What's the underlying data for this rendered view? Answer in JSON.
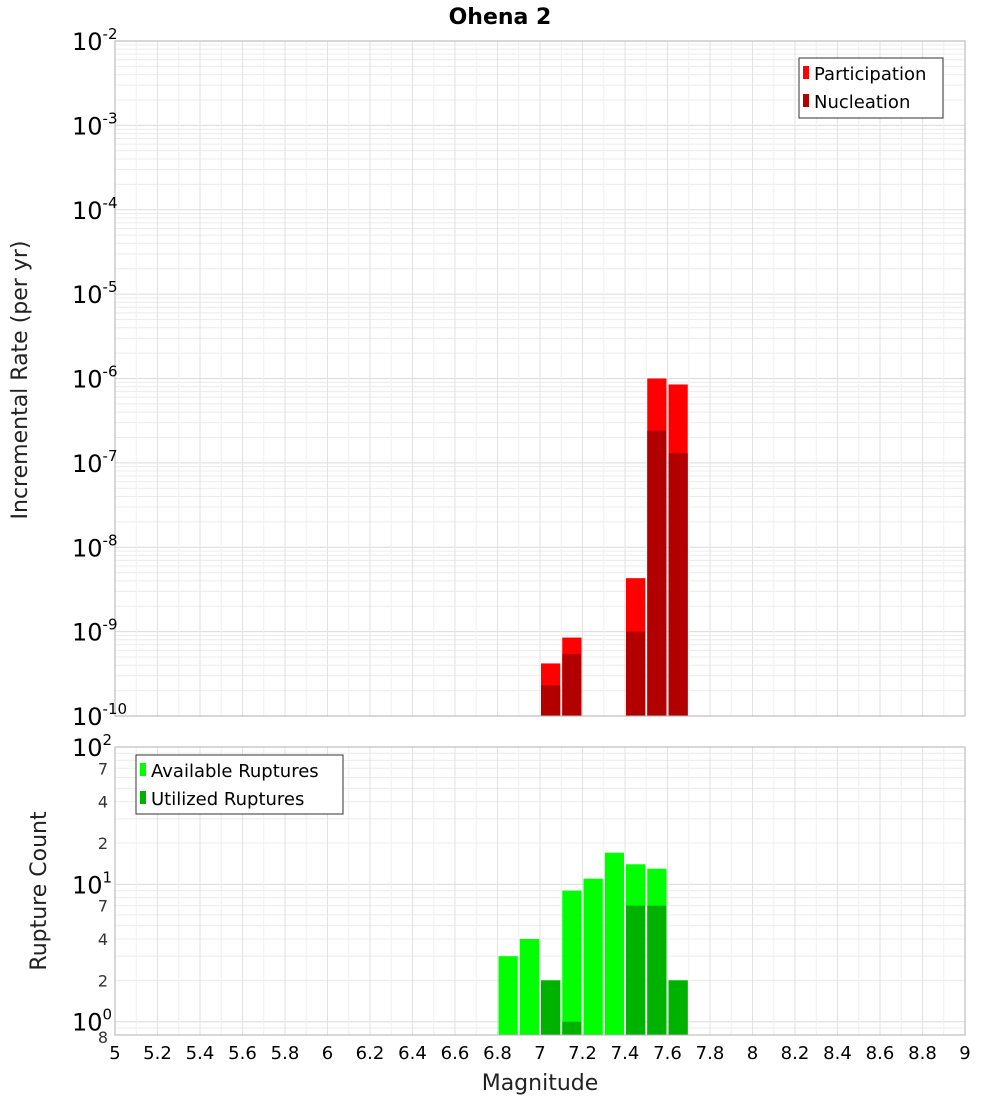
{
  "chart_data": [
    {
      "type": "bar",
      "title": "Ohena 2",
      "ylabel": "Incremental Rate (per yr)",
      "yscale": "log",
      "ylim": [
        1e-10,
        0.01
      ],
      "xlim": [
        5,
        9
      ],
      "bin_width": 0.1,
      "y_ticks": [
        {
          "base": "10",
          "exp": "-2"
        },
        {
          "base": "10",
          "exp": "-3"
        },
        {
          "base": "10",
          "exp": "-4"
        },
        {
          "base": "10",
          "exp": "-5"
        },
        {
          "base": "10",
          "exp": "-6"
        },
        {
          "base": "10",
          "exp": "-7"
        },
        {
          "base": "10",
          "exp": "-8"
        },
        {
          "base": "10",
          "exp": "-9"
        },
        {
          "base": "10",
          "exp": "-10"
        }
      ],
      "legend": {
        "position": "top-right",
        "entries": [
          {
            "label": "Participation",
            "color": "#ff0000"
          },
          {
            "label": "Nucleation",
            "color": "#b20000"
          }
        ]
      },
      "series": [
        {
          "name": "Participation",
          "color": "#ff0000",
          "x": [
            7.05,
            7.15,
            7.45,
            7.55,
            7.65
          ],
          "values": [
            4.2e-10,
            8.5e-10,
            4.3e-09,
            1e-06,
            8.5e-07
          ]
        },
        {
          "name": "Nucleation",
          "color": "#b20000",
          "x": [
            7.05,
            7.15,
            7.45,
            7.55,
            7.65
          ],
          "values": [
            2.3e-10,
            5.4e-10,
            1e-09,
            2.4e-07,
            1.3e-07
          ]
        }
      ],
      "grid": true
    },
    {
      "type": "bar",
      "title": "",
      "ylabel": "Rupture Count",
      "xlabel": "Magnitude",
      "yscale": "log",
      "ylim": [
        0.8,
        100
      ],
      "xlim": [
        5,
        9
      ],
      "bin_width": 0.1,
      "x_ticks": [
        "5",
        "5.2",
        "5.4",
        "5.6",
        "5.8",
        "6",
        "6.2",
        "6.4",
        "6.6",
        "6.8",
        "7",
        "7.2",
        "7.4",
        "7.6",
        "7.8",
        "8",
        "8.2",
        "8.4",
        "8.6",
        "8.8",
        "9"
      ],
      "y_major_ticks": [
        {
          "value": 1,
          "base": "10",
          "exp": "0"
        },
        {
          "value": 10,
          "base": "10",
          "exp": "1"
        },
        {
          "value": 100,
          "base": "10",
          "exp": "2"
        }
      ],
      "y_minor_labels": [
        {
          "value": 2,
          "label": "2"
        },
        {
          "value": 4,
          "label": "4"
        },
        {
          "value": 7,
          "label": "7"
        },
        {
          "value": 20,
          "label": "2"
        },
        {
          "value": 40,
          "label": "4"
        },
        {
          "value": 70,
          "label": "7"
        }
      ],
      "y_bottom_label": "8",
      "legend": {
        "position": "top-left",
        "entries": [
          {
            "label": "Available Ruptures",
            "color": "#00ff00"
          },
          {
            "label": "Utilized Ruptures",
            "color": "#00b200"
          }
        ]
      },
      "series": [
        {
          "name": "Available Ruptures",
          "color": "#00ff00",
          "x": [
            6.85,
            6.95,
            7.05,
            7.15,
            7.25,
            7.35,
            7.45,
            7.55,
            7.65
          ],
          "values": [
            3,
            4,
            2,
            9,
            11,
            17,
            14,
            13,
            2
          ]
        },
        {
          "name": "Utilized Ruptures",
          "color": "#00b200",
          "x": [
            7.05,
            7.15,
            7.45,
            7.55,
            7.65
          ],
          "values": [
            2,
            1,
            7,
            7,
            2
          ]
        }
      ],
      "grid": true
    }
  ]
}
